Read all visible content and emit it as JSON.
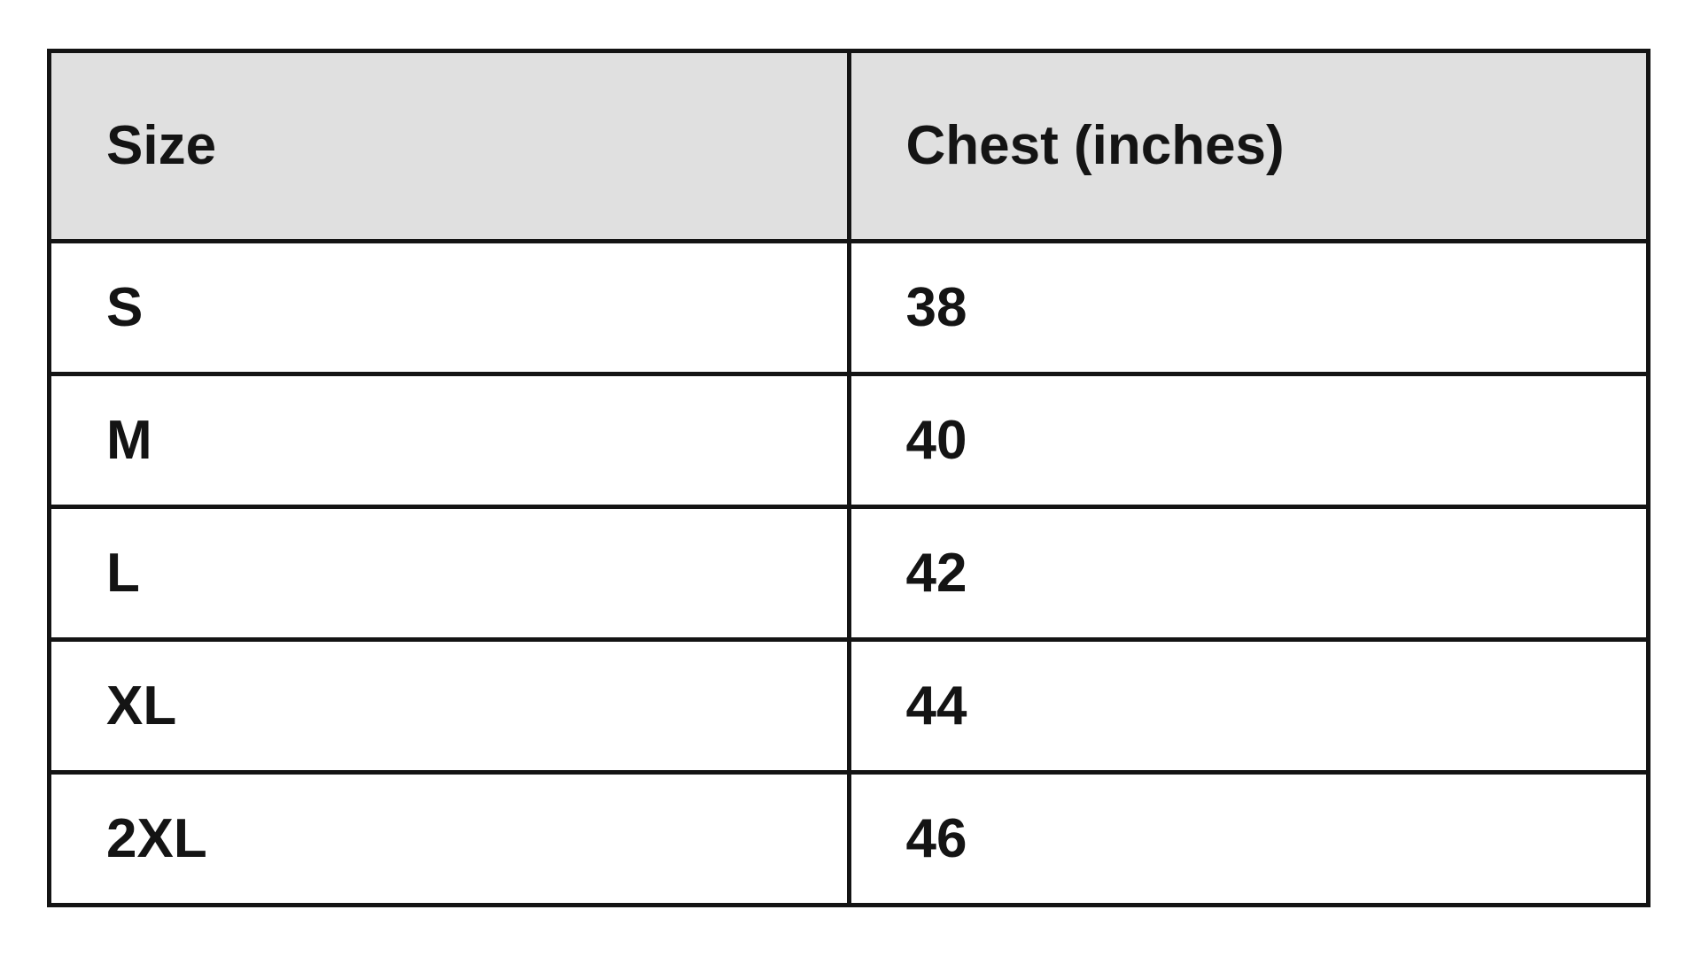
{
  "size_chart": {
    "columns": {
      "size_header": "Size",
      "chest_header": "Chest (inches)"
    },
    "rows": [
      {
        "size": "S",
        "chest": "38"
      },
      {
        "size": "M",
        "chest": "40"
      },
      {
        "size": "L",
        "chest": "42"
      },
      {
        "size": "XL",
        "chest": "44"
      },
      {
        "size": "2XL",
        "chest": "46"
      }
    ]
  },
  "colors": {
    "page_background": "#ffffff",
    "header_background": "#e0e0e0",
    "row_background": "#ffffff",
    "border": "#141414",
    "text": "#141414"
  },
  "chart_data": {
    "type": "table",
    "columns": [
      "Size",
      "Chest (inches)"
    ],
    "rows": [
      [
        "S",
        38
      ],
      [
        "M",
        40
      ],
      [
        "L",
        42
      ],
      [
        "XL",
        44
      ],
      [
        "2XL",
        46
      ]
    ]
  }
}
